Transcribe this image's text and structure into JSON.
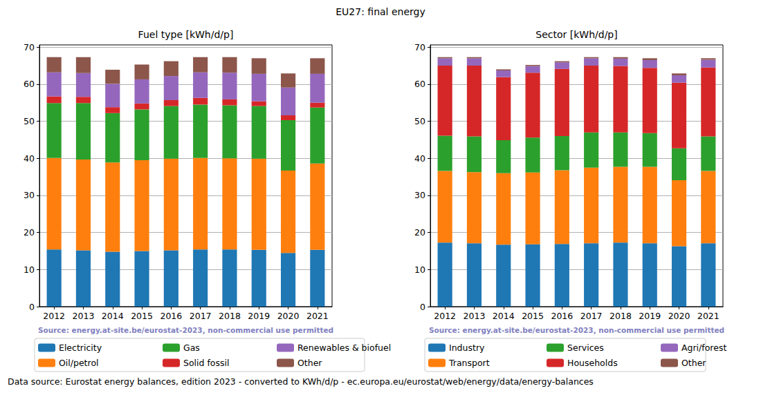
{
  "title": "EU27: final energy",
  "footer": "Data source: Eurostat energy balances, edition 2023 - converted to KWh/d/p - ec.europa.eu/eurostat/web/energy/data/energy-balances",
  "chart_data": [
    {
      "type": "bar",
      "title": "Fuel type [kWh/d/p]",
      "stacked": true,
      "grid": true,
      "legend": "bottom",
      "annotation": "Source: energy.at-site.be/eurostat-2023, non-commercial use permitted",
      "categories": [
        "2012",
        "2013",
        "2014",
        "2015",
        "2016",
        "2017",
        "2018",
        "2019",
        "2020",
        "2021"
      ],
      "ylim": [
        0,
        70.6
      ],
      "yticks": [
        0,
        10,
        20,
        30,
        40,
        50,
        60,
        70
      ],
      "series": [
        {
          "name": "Electricity",
          "color": "#1f77b4",
          "values": [
            15.4,
            15.2,
            14.8,
            15.0,
            15.2,
            15.4,
            15.4,
            15.3,
            14.5,
            15.3
          ]
        },
        {
          "name": "Oil/petrol",
          "color": "#ff7f0e",
          "values": [
            24.7,
            24.5,
            24.1,
            24.5,
            24.7,
            24.7,
            24.6,
            24.6,
            22.2,
            23.3
          ]
        },
        {
          "name": "Gas",
          "color": "#2ca02c",
          "values": [
            14.8,
            15.2,
            13.3,
            13.7,
            14.2,
            14.4,
            14.3,
            14.2,
            13.6,
            15.1
          ]
        },
        {
          "name": "Solid fossil",
          "color": "#d62728",
          "values": [
            1.8,
            1.7,
            1.6,
            1.6,
            1.6,
            1.8,
            1.6,
            1.3,
            1.3,
            1.3
          ]
        },
        {
          "name": "Renewables & biofuel",
          "color": "#9467bd",
          "values": [
            6.5,
            6.4,
            6.3,
            6.5,
            6.5,
            6.9,
            7.2,
            7.4,
            7.5,
            7.8
          ]
        },
        {
          "name": "Other",
          "color": "#8c564b",
          "values": [
            4.1,
            4.3,
            3.8,
            4.0,
            4.0,
            4.1,
            4.2,
            4.2,
            3.8,
            4.2
          ]
        }
      ]
    },
    {
      "type": "bar",
      "title": "Sector [kWh/d/p]",
      "stacked": true,
      "grid": true,
      "legend": "bottom",
      "annotation": "Source: energy.at-site.be/eurostat-2023, non-commercial use permitted",
      "categories": [
        "2012",
        "2013",
        "2014",
        "2015",
        "2016",
        "2017",
        "2018",
        "2019",
        "2020",
        "2021"
      ],
      "ylim": [
        0,
        70.6
      ],
      "yticks": [
        0,
        10,
        20,
        30,
        40,
        50,
        60,
        70
      ],
      "series": [
        {
          "name": "Industry",
          "color": "#1f77b4",
          "values": [
            17.3,
            17.1,
            16.7,
            16.8,
            16.9,
            17.1,
            17.3,
            17.1,
            16.3,
            17.1
          ]
        },
        {
          "name": "Transport",
          "color": "#ff7f0e",
          "values": [
            19.3,
            19.2,
            19.3,
            19.4,
            19.9,
            20.4,
            20.4,
            20.6,
            17.8,
            19.5
          ]
        },
        {
          "name": "Services",
          "color": "#2ca02c",
          "values": [
            9.5,
            9.6,
            8.9,
            9.4,
            9.2,
            9.5,
            9.3,
            9.1,
            8.6,
            9.3
          ]
        },
        {
          "name": "Households",
          "color": "#d62728",
          "values": [
            18.9,
            19.1,
            17.0,
            17.5,
            18.1,
            18.0,
            17.9,
            17.6,
            17.7,
            18.6
          ]
        },
        {
          "name": "Agri/forest",
          "color": "#9467bd",
          "values": [
            2.0,
            2.0,
            1.8,
            1.8,
            1.8,
            2.0,
            2.0,
            2.1,
            2.0,
            2.1
          ]
        },
        {
          "name": "Other",
          "color": "#8c564b",
          "values": [
            0.3,
            0.3,
            0.3,
            0.3,
            0.3,
            0.3,
            0.4,
            0.5,
            0.5,
            0.4
          ]
        }
      ]
    }
  ]
}
